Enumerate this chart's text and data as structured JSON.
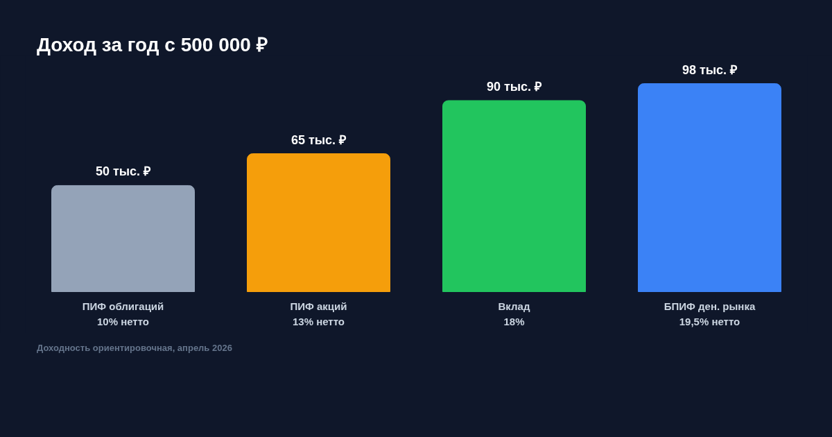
{
  "chart_data": {
    "type": "bar",
    "title": "Доход за год с 500 000 ₽",
    "categories": [
      "ПИФ облигаций\n10% нетто",
      "ПИФ акций\n13% нетто",
      "Вклад\n18%",
      "БПИФ ден. рынка\n19,5% нетто"
    ],
    "values": [
      50,
      65,
      90,
      98
    ],
    "colors": [
      "#94a3b8",
      "#f59e0b",
      "#22c55e",
      "#3b82f6"
    ],
    "value_labels": [
      "50 тыс. ₽",
      "65 тыс. ₽",
      "90 тыс. ₽",
      "98 тыс. ₽"
    ],
    "annotations": [
      "Доходность ориентировочная, апрель 2026"
    ]
  }
}
